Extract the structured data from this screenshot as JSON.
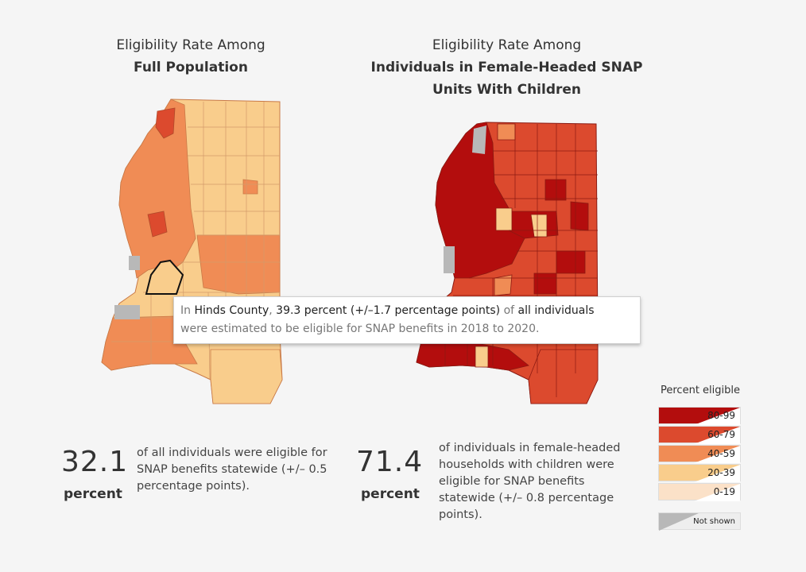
{
  "left_map": {
    "title_line1": "Eligibility Rate Among",
    "title_line2": "Full Population"
  },
  "right_map": {
    "title_line1": "Eligibility Rate Among",
    "title_line2": "Individuals in Female-Headed SNAP",
    "title_line3": "Units With Children"
  },
  "tooltip": {
    "prefix": "In",
    "county": "Hinds County",
    "sep": ",",
    "value": "39.3 percent (+/–1.7 percentage points)",
    "of": "of",
    "group": "all individuals",
    "line2": "were estimated to be eligible for SNAP benefits in 2018 to 2020."
  },
  "stats": {
    "left_value": "32.1",
    "left_unit": "percent",
    "left_text": "of all individuals were eligible for SNAP benefits statewide (+/– 0.5 percentage points).",
    "right_value": "71.4",
    "right_unit": "percent",
    "right_text": "of individuals in female-headed households with children were eligible for SNAP benefits statewide (+/– 0.8 percentage points)."
  },
  "legend": {
    "title": "Percent eligible",
    "items": [
      {
        "label": "80-99",
        "color": "#b30d0d"
      },
      {
        "label": "60-79",
        "color": "#dc4a2e"
      },
      {
        "label": "40-59",
        "color": "#f08c55"
      },
      {
        "label": "20-39",
        "color": "#f9cd8c"
      },
      {
        "label": "0-19",
        "color": "#fbe1c8"
      }
    ],
    "not_shown_label": "Not shown",
    "not_shown_color": "#b8b8b8"
  }
}
